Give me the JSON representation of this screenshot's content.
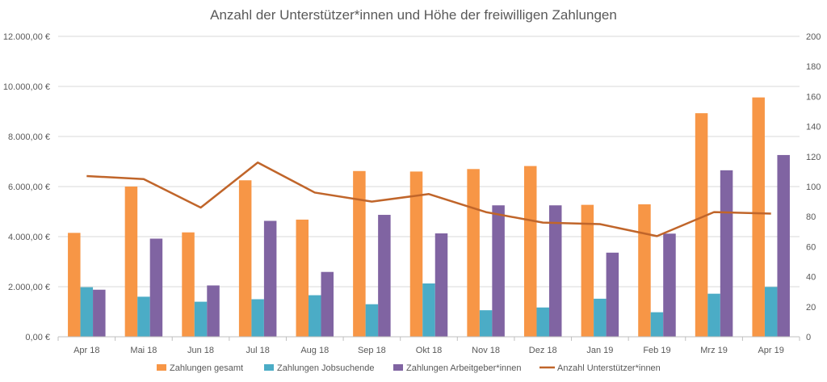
{
  "chart_data": {
    "type": "bar",
    "title": "Anzahl der Unterstützer*innen und Höhe der freiwilligen Zahlungen",
    "categories": [
      "Apr 18",
      "Mai 18",
      "Jun 18",
      "Jul 18",
      "Aug 18",
      "Sep 18",
      "Okt 18",
      "Nov 18",
      "Dez 18",
      "Jan 19",
      "Feb 19",
      "Mrz 19",
      "Apr 19"
    ],
    "y_left": {
      "min": 0,
      "max": 12000,
      "step": 2000,
      "tick_labels": [
        "0,00 €",
        "2.000,00 €",
        "4.000,00 €",
        "6.000,00 €",
        "8.000,00 €",
        "10.000,00 €",
        "12.000,00 €"
      ]
    },
    "y_right": {
      "min": 0,
      "max": 200,
      "step": 20,
      "tick_labels": [
        "0",
        "20",
        "40",
        "60",
        "80",
        "100",
        "120",
        "140",
        "160",
        "180",
        "200"
      ]
    },
    "series": [
      {
        "name": "Zahlungen gesamt",
        "kind": "bar",
        "axis": "left",
        "color": "#f79646",
        "values": [
          4150,
          6000,
          4170,
          6250,
          4680,
          6620,
          6600,
          6700,
          6820,
          5270,
          5290,
          8930,
          9560
        ]
      },
      {
        "name": "Zahlungen Jobsuchende",
        "kind": "bar",
        "axis": "left",
        "color": "#4bacc6",
        "values": [
          1980,
          1600,
          1400,
          1500,
          1660,
          1300,
          2130,
          1060,
          1170,
          1520,
          980,
          1720,
          1990
        ]
      },
      {
        "name": "Zahlungen Arbeitgeber*innen",
        "kind": "bar",
        "axis": "left",
        "color": "#8064a2",
        "values": [
          1880,
          3920,
          2050,
          4630,
          2590,
          4870,
          4130,
          5250,
          5250,
          3360,
          4120,
          6650,
          7260
        ]
      },
      {
        "name": "Anzahl Unterstützer*innen",
        "kind": "line",
        "axis": "right",
        "color": "#c0652a",
        "values": [
          107,
          105,
          86,
          116,
          96,
          90,
          95,
          83,
          76,
          75,
          67,
          83,
          82
        ]
      }
    ],
    "grid": true,
    "legend": "bottom"
  }
}
